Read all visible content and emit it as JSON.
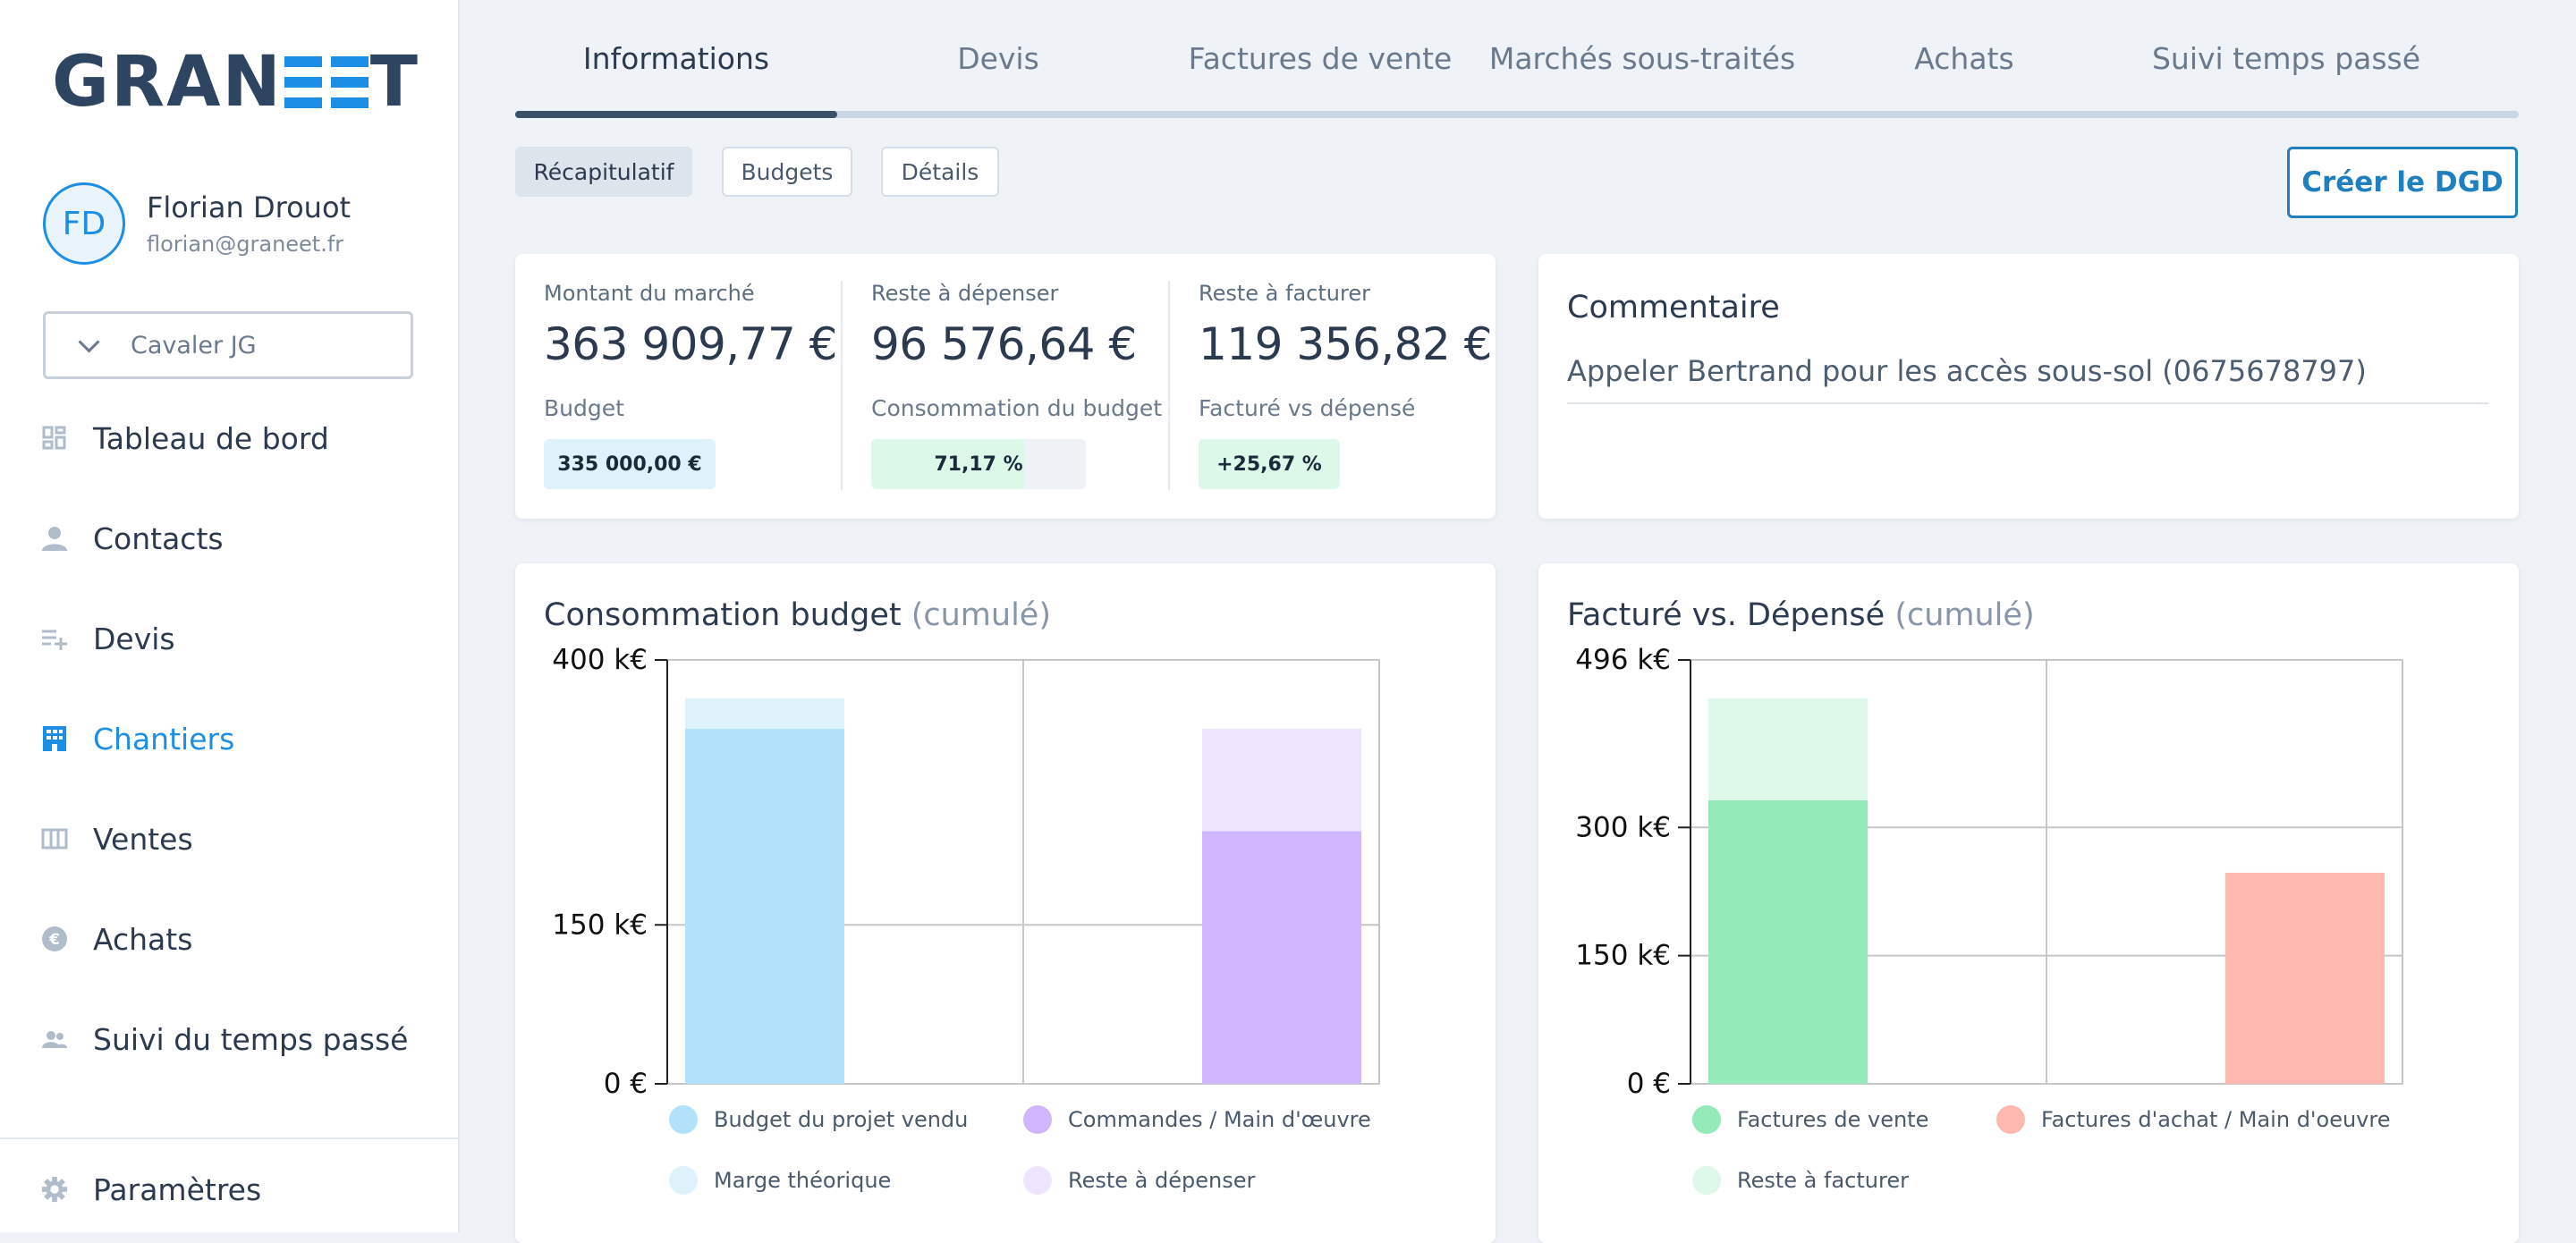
{
  "colors": {
    "accent": "#1c8ee6",
    "budget_vendu": "#b2e2fb",
    "marge_theorique": "#def2fc",
    "commandes": "#d0b6fc",
    "reste_depenser": "#efe4fd",
    "factures_vente": "#94eab8",
    "reste_facturer": "#def8ea",
    "factures_achat": "#ffb8af"
  },
  "logo": {
    "text_before": "GRAN",
    "text_after": "T"
  },
  "user": {
    "initials": "FD",
    "name": "Florian Drouot",
    "email": "florian@graneet.fr"
  },
  "company": {
    "selected": "Cavaler JG",
    "icon": "chevron-down-icon"
  },
  "nav": {
    "items": [
      {
        "label": "Tableau de bord",
        "icon": "dashboard-icon"
      },
      {
        "label": "Contacts",
        "icon": "person-icon"
      },
      {
        "label": "Devis",
        "icon": "playlist-add-icon"
      },
      {
        "label": "Chantiers",
        "icon": "building-icon",
        "active": true
      },
      {
        "label": "Ventes",
        "icon": "columns-icon"
      },
      {
        "label": "Achats",
        "icon": "euro-icon"
      },
      {
        "label": "Suivi du temps passé",
        "icon": "people-icon"
      }
    ],
    "settings": {
      "label": "Paramètres",
      "icon": "gear-icon"
    }
  },
  "tabs": [
    {
      "label": "Informations",
      "active": true
    },
    {
      "label": "Devis"
    },
    {
      "label": "Factures de vente"
    },
    {
      "label": "Marchés sous-traités"
    },
    {
      "label": "Achats"
    },
    {
      "label": "Suivi temps passé"
    }
  ],
  "subtabs": [
    {
      "label": "Récapitulatif",
      "active": true
    },
    {
      "label": "Budgets"
    },
    {
      "label": "Détails"
    }
  ],
  "actions": {
    "create_dgd": "Créer le DGD"
  },
  "kpis": [
    {
      "label": "Montant du marché",
      "value": "363 909,77 €",
      "sub_label": "Budget",
      "pill": "335 000,00 €",
      "pill_fill": 1.0
    },
    {
      "label": "Reste à dépenser",
      "value": "96 576,64 €",
      "sub_label": "Consommation du budget",
      "pill": "71,17 %",
      "pill_fill": 0.7117
    },
    {
      "label": "Reste à facturer",
      "value": "119 356,82 €",
      "sub_label": "Facturé vs dépensé",
      "pill": "+25,67 %",
      "pill_fill": 1.0
    }
  ],
  "comment": {
    "title": "Commentaire",
    "text": "Appeler Bertrand pour les accès sous-sol (0675678797)"
  },
  "chart_data": [
    {
      "type": "bar",
      "stacked": true,
      "title": "Consommation budget",
      "title_suffix": "(cumulé)",
      "unit": "k€",
      "ylim": [
        0,
        400
      ],
      "y_ticks": [
        {
          "value": 0,
          "label": "0 €"
        },
        {
          "value": 150,
          "label": "150  k€"
        },
        {
          "value": 400,
          "label": "400  k€"
        }
      ],
      "bars": [
        {
          "segments": [
            {
              "series": "Budget du projet vendu",
              "value": 335,
              "color": "#b2e2fb"
            },
            {
              "series": "Marge théorique",
              "value": 28.9,
              "color": "#def2fc"
            }
          ]
        },
        {
          "segments": [
            {
              "series": "Commandes / Main d'œuvre",
              "value": 238.4,
              "color": "#d0b6fc"
            },
            {
              "series": "Reste à dépenser",
              "value": 96.6,
              "color": "#efe4fd"
            }
          ]
        }
      ],
      "legend": [
        {
          "name": "Budget du projet vendu",
          "color": "#b2e2fb"
        },
        {
          "name": "Commandes / Main d'œuvre",
          "color": "#d0b6fc"
        },
        {
          "name": "Marge théorique",
          "color": "#def2fc"
        },
        {
          "name": "Reste à dépenser",
          "color": "#efe4fd"
        }
      ],
      "grid": true
    },
    {
      "type": "bar",
      "stacked": true,
      "title": "Facturé vs. Dépensé",
      "title_suffix": "(cumulé)",
      "unit": "k€",
      "ylim": [
        0,
        496
      ],
      "y_ticks": [
        {
          "value": 0,
          "label": "0 €"
        },
        {
          "value": 150,
          "label": "150  k€"
        },
        {
          "value": 300,
          "label": "300  k€"
        },
        {
          "value": 496,
          "label": "496  k€"
        }
      ],
      "bars": [
        {
          "segments": [
            {
              "series": "Factures de vente",
              "value": 331.7,
              "color": "#94eab8"
            },
            {
              "series": "Reste à facturer",
              "value": 119.4,
              "color": "#def8ea"
            }
          ]
        },
        {
          "segments": [
            {
              "series": "Factures d'achat / Main d'oeuvre",
              "value": 247,
              "color": "#ffb8af"
            }
          ]
        }
      ],
      "legend": [
        {
          "name": "Factures de vente",
          "color": "#94eab8"
        },
        {
          "name": "Factures d'achat / Main d'oeuvre",
          "color": "#ffb8af"
        },
        {
          "name": "Reste à facturer",
          "color": "#def8ea"
        }
      ],
      "grid": true
    }
  ]
}
